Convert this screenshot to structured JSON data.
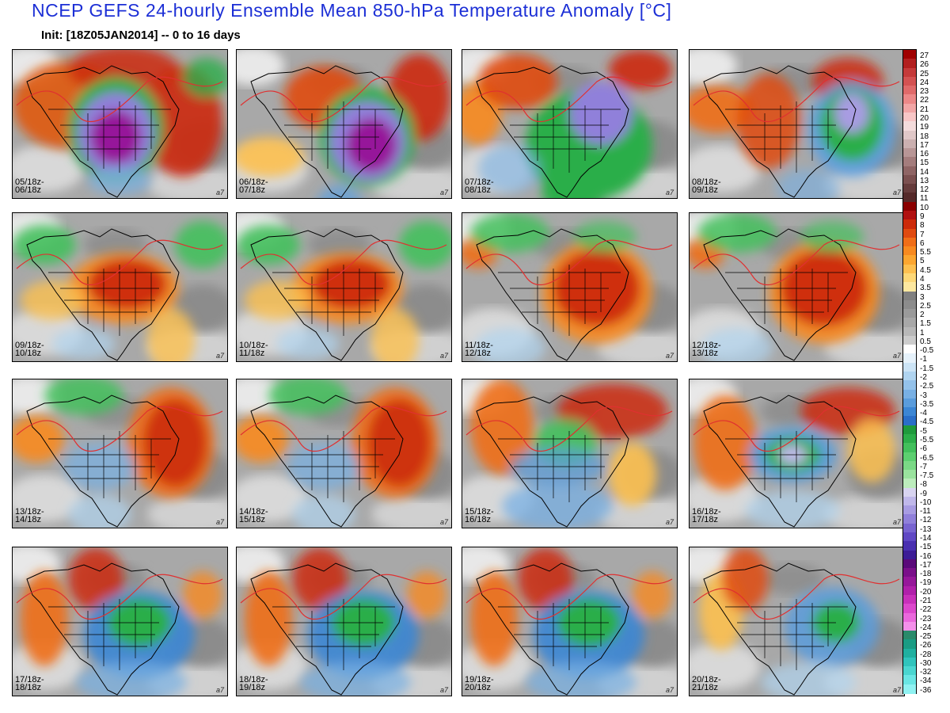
{
  "header": {
    "title": "NCEP GEFS 24-hourly Ensemble Mean 850-hPa Temperature Anomaly [°C]",
    "subtitle": "Init: [18Z05JAN2014] -- 0 to 16 days"
  },
  "panels": [
    {
      "label": "05/18z-\n06/18z",
      "code": "a7",
      "theme": "cold_center"
    },
    {
      "label": "06/18z-\n07/18z",
      "code": "a7",
      "theme": "cold_east"
    },
    {
      "label": "07/18z-\n08/18z",
      "code": "a7",
      "theme": "cold_east_green"
    },
    {
      "label": "08/18z-\n09/18z",
      "code": "a7",
      "theme": "cold_atlantic"
    },
    {
      "label": "09/18z-\n10/18z",
      "code": "a7",
      "theme": "warm_center"
    },
    {
      "label": "10/18z-\n11/18z",
      "code": "a7",
      "theme": "warm_center"
    },
    {
      "label": "11/18z-\n12/18z",
      "code": "a7",
      "theme": "warm_east"
    },
    {
      "label": "12/18z-\n13/18z",
      "code": "a7",
      "theme": "warm_east"
    },
    {
      "label": "13/18z-\n14/18z",
      "code": "a7",
      "theme": "warm_east_pac"
    },
    {
      "label": "14/18z-\n15/18z",
      "code": "a7",
      "theme": "warm_east_pac"
    },
    {
      "label": "15/18z-\n16/18z",
      "code": "a7",
      "theme": "mixed"
    },
    {
      "label": "16/18z-\n17/18z",
      "code": "a7",
      "theme": "mixed_green"
    },
    {
      "label": "17/18z-\n18/18z",
      "code": "a7",
      "theme": "cold_mid"
    },
    {
      "label": "18/18z-\n19/18z",
      "code": "a7",
      "theme": "cold_mid"
    },
    {
      "label": "19/18z-\n20/18z",
      "code": "a7",
      "theme": "cold_mid"
    },
    {
      "label": "20/18z-\n21/18z",
      "code": "a7",
      "theme": "cold_mid_light"
    }
  ],
  "colorbar": {
    "ticks": [
      "27",
      "26",
      "25",
      "24",
      "23",
      "22",
      "21",
      "20",
      "19",
      "18",
      "17",
      "16",
      "15",
      "14",
      "13",
      "12",
      "11",
      "10",
      "9",
      "8",
      "7",
      "6",
      "5.5",
      "5",
      "4.5",
      "4",
      "3.5",
      "3",
      "2.5",
      "2",
      "1.5",
      "1",
      "0.5",
      "-0.5",
      "-1",
      "-1.5",
      "-2",
      "-2.5",
      "-3",
      "-3.5",
      "-4",
      "-4.5",
      "-5",
      "-5.5",
      "-6",
      "-6.5",
      "-7",
      "-7.5",
      "-8",
      "-9",
      "-10",
      "-11",
      "-12",
      "-13",
      "-14",
      "-15",
      "-16",
      "-17",
      "-18",
      "-19",
      "-20",
      "-21",
      "-22",
      "-23",
      "-24",
      "-25",
      "-26",
      "-28",
      "-30",
      "-32",
      "-34",
      "-36"
    ],
    "colors": [
      "#a00000",
      "#b21f1f",
      "#c53a3a",
      "#d45252",
      "#e06a6a",
      "#ec8888",
      "#f2a6a6",
      "#f8c6c6",
      "#f4dcdc",
      "#e0c8c8",
      "#cbb0b0",
      "#b89696",
      "#a47d7d",
      "#8f6565",
      "#7b5050",
      "#663c3c",
      "#552a2a",
      "#8b0000",
      "#b01010",
      "#cc2a0a",
      "#e04a10",
      "#f06e18",
      "#f88a20",
      "#fca630",
      "#fdc050",
      "#fdd878",
      "#fde8a0",
      "#808080",
      "#8c8c8c",
      "#9a9a9a",
      "#a8a8a8",
      "#b8b8b8",
      "#cccccc",
      "#ffffff",
      "#e6f2fb",
      "#cce4f6",
      "#b0d4f0",
      "#94c2ea",
      "#78b0e4",
      "#5a9cdc",
      "#3c86d4",
      "#2a6ec8",
      "#1f9a3c",
      "#2cae4a",
      "#42c05c",
      "#5ccf70",
      "#7ad986",
      "#9ae39e",
      "#bcecbc",
      "#d8d4f0",
      "#c0b8ea",
      "#a89ce2",
      "#9080da",
      "#7864d0",
      "#6048c4",
      "#4a30b0",
      "#3c1c96",
      "#5a0a7a",
      "#7a108a",
      "#96189a",
      "#b020aa",
      "#c830ba",
      "#dc48cc",
      "#ea68dc",
      "#f490ea",
      "#2a8a6a",
      "#1a9c84",
      "#20b0a0",
      "#30c4bc",
      "#4ad6d0",
      "#6ae6e4",
      "#90f2f2"
    ]
  }
}
